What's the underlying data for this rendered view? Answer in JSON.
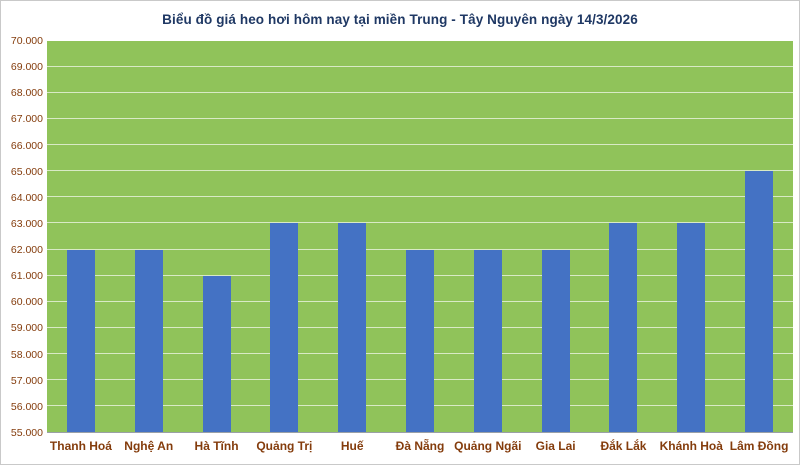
{
  "chart_data": {
    "type": "bar",
    "title": "Biểu đồ giá heo hơi hôm nay tại miền Trung - Tây Nguyên ngày 14/3/2026",
    "categories": [
      "Thanh Hoá",
      "Nghệ An",
      "Hà Tĩnh",
      "Quảng Trị",
      "Huế",
      "Đà Nẵng",
      "Quảng Ngãi",
      "Gia Lai",
      "Đắk Lắk",
      "Khánh Hoà",
      "Lâm Đồng"
    ],
    "values": [
      62000,
      62000,
      61000,
      63000,
      63000,
      62000,
      62000,
      62000,
      63000,
      63000,
      65000
    ],
    "xlabel": "",
    "ylabel": "",
    "ylim": [
      55000,
      70000
    ],
    "ytick_step": 1000,
    "ytick_labels": [
      "55.000",
      "56.000",
      "57.000",
      "58.000",
      "59.000",
      "60.000",
      "61.000",
      "62.000",
      "63.000",
      "64.000",
      "65.000",
      "66.000",
      "67.000",
      "68.000",
      "69.000",
      "70.000"
    ],
    "grid": true,
    "legend": false,
    "colors": {
      "bar": "#4472C4",
      "plot_bg": "#90C35A",
      "gridline": "rgba(255,255,255,0.65)",
      "title": "#1F3864",
      "axis_label": "#843C0C"
    }
  }
}
